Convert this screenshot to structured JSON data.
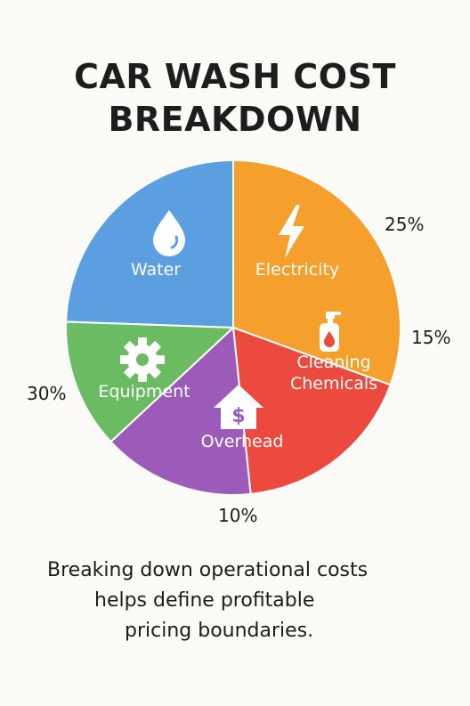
{
  "chart_data": {
    "type": "pie",
    "title_lines": [
      "CAR WASH COST",
      "BREAKDOWN"
    ],
    "slices": [
      {
        "label": "Water",
        "value": null,
        "color": "#5b9fe0",
        "icon": "water-drop-icon"
      },
      {
        "label": "Electricity",
        "value": 25,
        "display": "25%",
        "color": "#f5a02c",
        "icon": "lightning-bolt-icon"
      },
      {
        "label": "Cleaning Chemicals",
        "label_lines": [
          "Cleaning",
          "Chemicals"
        ],
        "value": 15,
        "display": "15%",
        "color": "#ec4a3f",
        "icon": "spray-bottle-icon"
      },
      {
        "label": "Overhead",
        "value": 10,
        "display": "10%",
        "color": "#9c5bb8",
        "icon": "house-dollar-icon"
      },
      {
        "label": "Equipment",
        "value": 30,
        "display": "30%",
        "color": "#6bbb63",
        "icon": "gear-icon"
      }
    ],
    "legend": false
  },
  "caption_lines": [
    "Breaking down operational costs",
    "helps define profitable",
    "pricing boundaries."
  ]
}
